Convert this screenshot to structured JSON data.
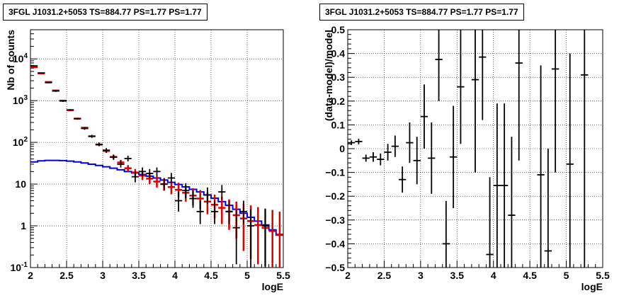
{
  "chart_data": [
    {
      "type": "scatter",
      "title": "3FGL J1031.2+5053 TS=884.77 PS=1.77 PS=1.77",
      "xlabel": "logE",
      "ylabel": "Nb of counts",
      "xlim": [
        2,
        5.5
      ],
      "ylim": [
        0.1,
        50000
      ],
      "yscale": "log",
      "grid": true,
      "xticks": [
        "2",
        "2.5",
        "3",
        "3.5",
        "4",
        "4.5",
        "5",
        "5.5"
      ],
      "yticks": [
        "10^-1",
        "1",
        "10",
        "10^2",
        "10^3",
        "10^4"
      ],
      "series": [
        {
          "kind": "data-points",
          "color": "#000000",
          "points": [
            {
              "x": 2.05,
              "y": 6800,
              "lo": 6600,
              "hi": 7000
            },
            {
              "x": 2.15,
              "y": 4600,
              "lo": 4450,
              "hi": 4750
            },
            {
              "x": 2.25,
              "y": 2700,
              "lo": 2600,
              "hi": 2800
            },
            {
              "x": 2.35,
              "y": 1700,
              "lo": 1620,
              "hi": 1780
            },
            {
              "x": 2.45,
              "y": 980,
              "lo": 930,
              "hi": 1030
            },
            {
              "x": 2.55,
              "y": 600,
              "lo": 570,
              "hi": 630
            },
            {
              "x": 2.65,
              "y": 370,
              "lo": 350,
              "hi": 390
            },
            {
              "x": 2.75,
              "y": 215,
              "lo": 200,
              "hi": 230
            },
            {
              "x": 2.85,
              "y": 140,
              "lo": 128,
              "hi": 152
            },
            {
              "x": 2.95,
              "y": 90,
              "lo": 81,
              "hi": 99
            },
            {
              "x": 3.05,
              "y": 65,
              "lo": 57,
              "hi": 73
            },
            {
              "x": 3.15,
              "y": 44,
              "lo": 38,
              "hi": 51
            },
            {
              "x": 3.25,
              "y": 30,
              "lo": 25,
              "hi": 36
            },
            {
              "x": 3.35,
              "y": 41,
              "lo": 35,
              "hi": 48
            },
            {
              "x": 3.45,
              "y": 15,
              "lo": 11,
              "hi": 20
            },
            {
              "x": 3.55,
              "y": 20,
              "lo": 15.5,
              "hi": 25
            },
            {
              "x": 3.65,
              "y": 18,
              "lo": 14,
              "hi": 23
            },
            {
              "x": 3.75,
              "y": 20,
              "lo": 15.5,
              "hi": 25
            },
            {
              "x": 3.85,
              "y": 10,
              "lo": 7,
              "hi": 14
            },
            {
              "x": 3.95,
              "y": 14,
              "lo": 10.5,
              "hi": 18.5
            },
            {
              "x": 4.05,
              "y": 4,
              "lo": 2.2,
              "hi": 6.5
            },
            {
              "x": 4.15,
              "y": 7,
              "lo": 4.6,
              "hi": 10.5
            },
            {
              "x": 4.25,
              "y": 4.5,
              "lo": 2.7,
              "hi": 7
            },
            {
              "x": 4.35,
              "y": 2.2,
              "lo": 1.1,
              "hi": 4
            },
            {
              "x": 4.45,
              "y": 5.5,
              "lo": 3.4,
              "hi": 8.3
            },
            {
              "x": 4.55,
              "y": 2.2,
              "lo": 1.1,
              "hi": 4
            },
            {
              "x": 4.65,
              "y": 6.5,
              "lo": 4.2,
              "hi": 9.5
            },
            {
              "x": 4.75,
              "y": 2.2,
              "lo": 1.1,
              "hi": 4
            },
            {
              "x": 4.85,
              "y": 0.9,
              "lo": 0.12,
              "hi": 2.4
            },
            {
              "x": 4.95,
              "y": 2.2,
              "lo": 1.1,
              "hi": 4
            },
            {
              "x": 5.05,
              "y": 1,
              "lo": 0.1,
              "hi": 2.5
            },
            {
              "x": 5.25,
              "y": 1,
              "lo": 0.1,
              "hi": 2.5
            }
          ]
        },
        {
          "kind": "model-points",
          "color": "#dd0000",
          "points": [
            {
              "x": 2.05,
              "y": 6300,
              "lo": 6200,
              "hi": 6400
            },
            {
              "x": 2.15,
              "y": 4500,
              "lo": 4450,
              "hi": 4550
            },
            {
              "x": 2.25,
              "y": 2800,
              "lo": 2750,
              "hi": 2850
            },
            {
              "x": 2.35,
              "y": 1750,
              "lo": 1720,
              "hi": 1780
            },
            {
              "x": 2.45,
              "y": 1000,
              "lo": 980,
              "hi": 1020
            },
            {
              "x": 2.55,
              "y": 590,
              "lo": 575,
              "hi": 605
            },
            {
              "x": 2.65,
              "y": 370,
              "lo": 360,
              "hi": 380
            },
            {
              "x": 2.75,
              "y": 225,
              "lo": 215,
              "hi": 235
            },
            {
              "x": 2.85,
              "y": 140,
              "lo": 133,
              "hi": 147
            },
            {
              "x": 2.95,
              "y": 88,
              "lo": 82,
              "hi": 94
            },
            {
              "x": 3.05,
              "y": 62,
              "lo": 56,
              "hi": 68
            },
            {
              "x": 3.15,
              "y": 45,
              "lo": 40,
              "hi": 50
            },
            {
              "x": 3.25,
              "y": 33,
              "lo": 29,
              "hi": 38
            },
            {
              "x": 3.35,
              "y": 24,
              "lo": 20,
              "hi": 28.5
            },
            {
              "x": 3.45,
              "y": 19,
              "lo": 15.5,
              "hi": 23
            },
            {
              "x": 3.55,
              "y": 16,
              "lo": 12.5,
              "hi": 20
            },
            {
              "x": 3.65,
              "y": 13.5,
              "lo": 10,
              "hi": 17.5
            },
            {
              "x": 3.75,
              "y": 11.5,
              "lo": 8.3,
              "hi": 15.5
            },
            {
              "x": 3.85,
              "y": 10,
              "lo": 7,
              "hi": 13.5
            },
            {
              "x": 3.95,
              "y": 8.5,
              "lo": 5.7,
              "hi": 12
            },
            {
              "x": 4.05,
              "y": 7.3,
              "lo": 4.8,
              "hi": 10.8
            },
            {
              "x": 4.15,
              "y": 6.2,
              "lo": 3.8,
              "hi": 9.2
            },
            {
              "x": 4.25,
              "y": 5.3,
              "lo": 3.1,
              "hi": 8
            },
            {
              "x": 4.35,
              "y": 4.5,
              "lo": 2.5,
              "hi": 7.2
            },
            {
              "x": 4.45,
              "y": 3.8,
              "lo": 1.9,
              "hi": 6.4
            },
            {
              "x": 4.55,
              "y": 3.2,
              "lo": 1.5,
              "hi": 5.6
            },
            {
              "x": 4.65,
              "y": 2.7,
              "lo": 1.1,
              "hi": 4.9
            },
            {
              "x": 4.75,
              "y": 2.2,
              "lo": 0.8,
              "hi": 4.3
            },
            {
              "x": 4.85,
              "y": 1.8,
              "lo": 0.5,
              "hi": 3.8
            },
            {
              "x": 4.95,
              "y": 1.5,
              "lo": 0.25,
              "hi": 3.4
            },
            {
              "x": 5.05,
              "y": 1.3,
              "lo": 0.16,
              "hi": 3.1
            },
            {
              "x": 5.15,
              "y": 1.05,
              "lo": 0.12,
              "hi": 2.8
            },
            {
              "x": 5.25,
              "y": 0.9,
              "lo": 0.11,
              "hi": 2.6
            },
            {
              "x": 5.35,
              "y": 0.75,
              "lo": 0.1,
              "hi": 2.4
            },
            {
              "x": 5.45,
              "y": 0.62,
              "lo": 0.1,
              "hi": 2.2
            }
          ]
        },
        {
          "kind": "step-histogram",
          "color": "#0000dd",
          "bin_edges": [
            2.0,
            2.1,
            2.2,
            2.3,
            2.4,
            2.5,
            2.6,
            2.7,
            2.8,
            2.9,
            3.0,
            3.1,
            3.2,
            3.3,
            3.4,
            3.5,
            3.6,
            3.7,
            3.8,
            3.9,
            4.0,
            4.1,
            4.2,
            4.3,
            4.4,
            4.5,
            4.6,
            4.7,
            4.8,
            4.9,
            5.0,
            5.1,
            5.2,
            5.3,
            5.4,
            5.5
          ],
          "values": [
            34,
            36,
            37,
            37,
            36.5,
            35.5,
            34,
            32,
            30,
            28,
            26,
            24,
            22,
            20,
            18.5,
            17,
            15.5,
            14,
            12.5,
            11,
            9.8,
            8.6,
            7.5,
            6.5,
            5.5,
            4.6,
            3.8,
            3.1,
            2.5,
            2,
            1.6,
            1.3,
            1.05,
            0.8,
            0.6
          ]
        }
      ]
    },
    {
      "type": "scatter",
      "title": "3FGL J1031.2+5053 TS=884.77 PS=1.77 PS=1.77",
      "xlabel": "logE",
      "ylabel": "(data-model)/model",
      "xlim": [
        2,
        5.5
      ],
      "ylim": [
        -0.5,
        0.5
      ],
      "grid": true,
      "xticks": [
        "2",
        "2.5",
        "3",
        "3.5",
        "4",
        "4.5",
        "5",
        "5.5"
      ],
      "yticks": [
        "-0.5",
        "-0.4",
        "-0.3",
        "-0.2",
        "-0.1",
        "0",
        "0.1",
        "0.2",
        "0.3",
        "0.4",
        "0.5"
      ],
      "series": [
        {
          "kind": "residuals",
          "color": "#000000",
          "points": [
            {
              "x": 2.05,
              "y": 0.025,
              "lo": 0.015,
              "hi": 0.035
            },
            {
              "x": 2.15,
              "y": 0.03,
              "lo": 0.018,
              "hi": 0.042
            },
            {
              "x": 2.25,
              "y": -0.04,
              "lo": -0.055,
              "hi": -0.025
            },
            {
              "x": 2.35,
              "y": -0.035,
              "lo": -0.055,
              "hi": -0.015
            },
            {
              "x": 2.45,
              "y": -0.045,
              "lo": -0.07,
              "hi": -0.02
            },
            {
              "x": 2.55,
              "y": -0.015,
              "lo": -0.05,
              "hi": 0.02
            },
            {
              "x": 2.65,
              "y": 0.01,
              "lo": -0.035,
              "hi": 0.055
            },
            {
              "x": 2.75,
              "y": -0.13,
              "lo": -0.185,
              "hi": -0.075
            },
            {
              "x": 2.85,
              "y": 0.025,
              "lo": -0.06,
              "hi": 0.11
            },
            {
              "x": 2.95,
              "y": -0.05,
              "lo": -0.15,
              "hi": 0.05
            },
            {
              "x": 3.05,
              "y": 0.135,
              "lo": 0.0,
              "hi": 0.27
            },
            {
              "x": 3.15,
              "y": -0.04,
              "lo": -0.19,
              "hi": 0.11
            },
            {
              "x": 3.25,
              "y": 0.375,
              "lo": 0.2,
              "hi": 0.5
            },
            {
              "x": 3.35,
              "y": -0.4,
              "lo": -0.5,
              "hi": -0.22
            },
            {
              "x": 3.45,
              "y": -0.035,
              "lo": -0.25,
              "hi": 0.18
            },
            {
              "x": 3.55,
              "y": 0.26,
              "lo": 0.02,
              "hi": 0.5
            },
            {
              "x": 3.75,
              "y": 0.29,
              "lo": -0.1,
              "hi": 0.5
            },
            {
              "x": 3.85,
              "y": 0.385,
              "lo": 0.12,
              "hi": 0.5
            },
            {
              "x": 3.95,
              "y": -0.445,
              "lo": -0.5,
              "hi": -0.12
            },
            {
              "x": 4.05,
              "y": -0.155,
              "lo": -0.5,
              "hi": 0.19
            },
            {
              "x": 4.15,
              "y": -0.155,
              "lo": -0.5,
              "hi": 0.19
            },
            {
              "x": 4.25,
              "y": -0.28,
              "lo": -0.5,
              "hi": 0.05
            },
            {
              "x": 4.35,
              "y": 0.36,
              "lo": -0.05,
              "hi": 0.5
            },
            {
              "x": 4.65,
              "y": -0.11,
              "lo": -0.5,
              "hi": 0.35
            },
            {
              "x": 4.75,
              "y": -0.43,
              "lo": -0.5,
              "hi": 0.0
            },
            {
              "x": 4.85,
              "y": 0.335,
              "lo": -0.1,
              "hi": 0.5
            },
            {
              "x": 5.05,
              "y": -0.065,
              "lo": -0.5,
              "hi": 0.4
            },
            {
              "x": 5.25,
              "y": 0.31,
              "lo": -0.5,
              "hi": 0.5
            }
          ]
        }
      ]
    }
  ]
}
